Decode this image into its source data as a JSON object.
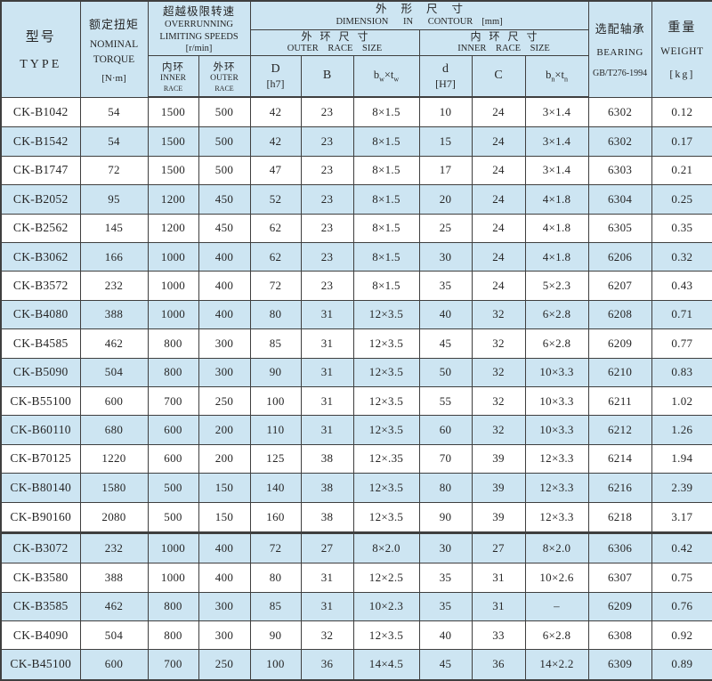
{
  "header": {
    "type": {
      "zh": "型号",
      "en": "TYPE"
    },
    "torque": {
      "zh": "额定扭矩",
      "en_line1": "NOMINAL",
      "en_line2": "TORQUE",
      "unit": "[N·m]"
    },
    "speeds": {
      "zh": "超越极限转速",
      "en_line1": "OVERRUNNING",
      "en_line2": "LIMITING SPEEDS",
      "unit": "[r/min]",
      "inner": {
        "zh": "内环",
        "en_line1": "INNER",
        "en_line2": "RACE"
      },
      "outer": {
        "zh": "外环",
        "en_line1": "OUTER",
        "en_line2": "RACE"
      }
    },
    "dimension": {
      "zh": "外形尺寸",
      "en": "DIMENSION IN CONTOUR",
      "unit": "[mm]",
      "outer_size": {
        "zh": "外环尺寸",
        "en": "OUTER RACE SIZE"
      },
      "inner_size": {
        "zh": "内环尺寸",
        "en": "INNER RACE SIZE"
      },
      "col_D": {
        "line1": "D",
        "line2": "[h7]"
      },
      "col_B": "B",
      "col_bwtw": {
        "base1": "b",
        "sub1": "w",
        "times": "×",
        "base2": "t",
        "sub2": "w"
      },
      "col_d": {
        "line1": "d",
        "line2": "[H7]"
      },
      "col_C": "C",
      "col_bntn": {
        "base1": "b",
        "sub1": "n",
        "times": "×",
        "base2": "t",
        "sub2": "n"
      }
    },
    "bearing": {
      "zh": "选配轴承",
      "en": "BEARING",
      "std": "GB/T276-1994"
    },
    "weight": {
      "zh": "重量",
      "en": "WEIGHT",
      "unit": "[kg]"
    }
  },
  "table": {
    "group_break_after": 15,
    "rows": [
      [
        "CK-B1042",
        "54",
        "1500",
        "500",
        "42",
        "23",
        "8×1.5",
        "10",
        "24",
        "3×1.4",
        "6302",
        "0.12"
      ],
      [
        "CK-B1542",
        "54",
        "1500",
        "500",
        "42",
        "23",
        "8×1.5",
        "15",
        "24",
        "3×1.4",
        "6302",
        "0.17"
      ],
      [
        "CK-B1747",
        "72",
        "1500",
        "500",
        "47",
        "23",
        "8×1.5",
        "17",
        "24",
        "3×1.4",
        "6303",
        "0.21"
      ],
      [
        "CK-B2052",
        "95",
        "1200",
        "450",
        "52",
        "23",
        "8×1.5",
        "20",
        "24",
        "4×1.8",
        "6304",
        "0.25"
      ],
      [
        "CK-B2562",
        "145",
        "1200",
        "450",
        "62",
        "23",
        "8×1.5",
        "25",
        "24",
        "4×1.8",
        "6305",
        "0.35"
      ],
      [
        "CK-B3062",
        "166",
        "1000",
        "400",
        "62",
        "23",
        "8×1.5",
        "30",
        "24",
        "4×1.8",
        "6206",
        "0.32"
      ],
      [
        "CK-B3572",
        "232",
        "1000",
        "400",
        "72",
        "23",
        "8×1.5",
        "35",
        "24",
        "5×2.3",
        "6207",
        "0.43"
      ],
      [
        "CK-B4080",
        "388",
        "1000",
        "400",
        "80",
        "31",
        "12×3.5",
        "40",
        "32",
        "6×2.8",
        "6208",
        "0.71"
      ],
      [
        "CK-B4585",
        "462",
        "800",
        "300",
        "85",
        "31",
        "12×3.5",
        "45",
        "32",
        "6×2.8",
        "6209",
        "0.77"
      ],
      [
        "CK-B5090",
        "504",
        "800",
        "300",
        "90",
        "31",
        "12×3.5",
        "50",
        "32",
        "10×3.3",
        "6210",
        "0.83"
      ],
      [
        "CK-B55100",
        "600",
        "700",
        "250",
        "100",
        "31",
        "12×3.5",
        "55",
        "32",
        "10×3.3",
        "6211",
        "1.02"
      ],
      [
        "CK-B60110",
        "680",
        "600",
        "200",
        "110",
        "31",
        "12×3.5",
        "60",
        "32",
        "10×3.3",
        "6212",
        "1.26"
      ],
      [
        "CK-B70125",
        "1220",
        "600",
        "200",
        "125",
        "38",
        "12×.35",
        "70",
        "39",
        "12×3.3",
        "6214",
        "1.94"
      ],
      [
        "CK-B80140",
        "1580",
        "500",
        "150",
        "140",
        "38",
        "12×3.5",
        "80",
        "39",
        "12×3.3",
        "6216",
        "2.39"
      ],
      [
        "CK-B90160",
        "2080",
        "500",
        "150",
        "160",
        "38",
        "12×3.5",
        "90",
        "39",
        "12×3.3",
        "6218",
        "3.17"
      ],
      [
        "CK-B3072",
        "232",
        "1000",
        "400",
        "72",
        "27",
        "8×2.0",
        "30",
        "27",
        "8×2.0",
        "6306",
        "0.42"
      ],
      [
        "CK-B3580",
        "388",
        "1000",
        "400",
        "80",
        "31",
        "12×2.5",
        "35",
        "31",
        "10×2.6",
        "6307",
        "0.75"
      ],
      [
        "CK-B3585",
        "462",
        "800",
        "300",
        "85",
        "31",
        "10×2.3",
        "35",
        "31",
        "–",
        "6209",
        "0.76"
      ],
      [
        "CK-B4090",
        "504",
        "800",
        "300",
        "90",
        "32",
        "12×3.5",
        "40",
        "33",
        "6×2.8",
        "6308",
        "0.92"
      ],
      [
        "CK-B45100",
        "600",
        "700",
        "250",
        "100",
        "36",
        "14×4.5",
        "45",
        "36",
        "14×2.2",
        "6309",
        "0.89"
      ]
    ]
  },
  "colors": {
    "stripe_bg": "#cde5f2",
    "header_bg": "#cde5f2",
    "row_bg": "#ffffff",
    "border": "#3f3f3f",
    "text": "#262626"
  }
}
